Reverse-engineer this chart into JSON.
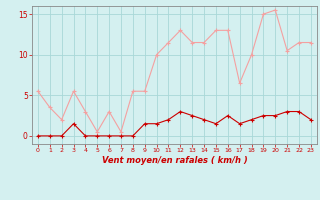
{
  "x": [
    0,
    1,
    2,
    3,
    4,
    5,
    6,
    7,
    8,
    9,
    10,
    11,
    12,
    13,
    14,
    15,
    16,
    17,
    18,
    19,
    20,
    21,
    22,
    23
  ],
  "rafales": [
    5.5,
    3.5,
    2.0,
    5.5,
    3.0,
    0.5,
    3.0,
    0.5,
    5.5,
    5.5,
    10.0,
    11.5,
    13.0,
    11.5,
    11.5,
    13.0,
    13.0,
    6.5,
    10.0,
    15.0,
    15.5,
    10.5,
    11.5,
    11.5
  ],
  "moyen": [
    0.0,
    0.0,
    0.0,
    1.5,
    0.0,
    0.0,
    0.0,
    0.0,
    0.0,
    1.5,
    1.5,
    2.0,
    3.0,
    2.5,
    2.0,
    1.5,
    2.5,
    1.5,
    2.0,
    2.5,
    2.5,
    3.0,
    3.0,
    2.0
  ],
  "color_rafales": "#f4a0a0",
  "color_moyen": "#cc0000",
  "background_color": "#d4f0f0",
  "grid_color": "#a8d8d8",
  "axis_color": "#888888",
  "text_color": "#cc0000",
  "xlabel": "Vent moyen/en rafales ( km/h )",
  "yticks": [
    0,
    5,
    10,
    15
  ],
  "xlim": [
    -0.5,
    23.5
  ],
  "ylim": [
    -1.0,
    16.0
  ],
  "figsize": [
    3.2,
    2.0
  ],
  "dpi": 100
}
